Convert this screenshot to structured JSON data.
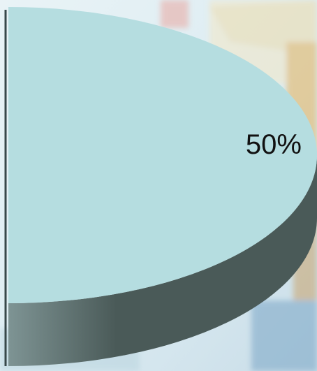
{
  "chart_data": {
    "type": "pie",
    "style": "3d",
    "title": "",
    "legend": "none",
    "slices": [
      {
        "value": 50,
        "label": "50%"
      }
    ],
    "colors": {
      "top": "#b5dde0",
      "side_dark": "#4a5a58",
      "side_light": "#7e9494",
      "edge": "#38484a"
    }
  }
}
